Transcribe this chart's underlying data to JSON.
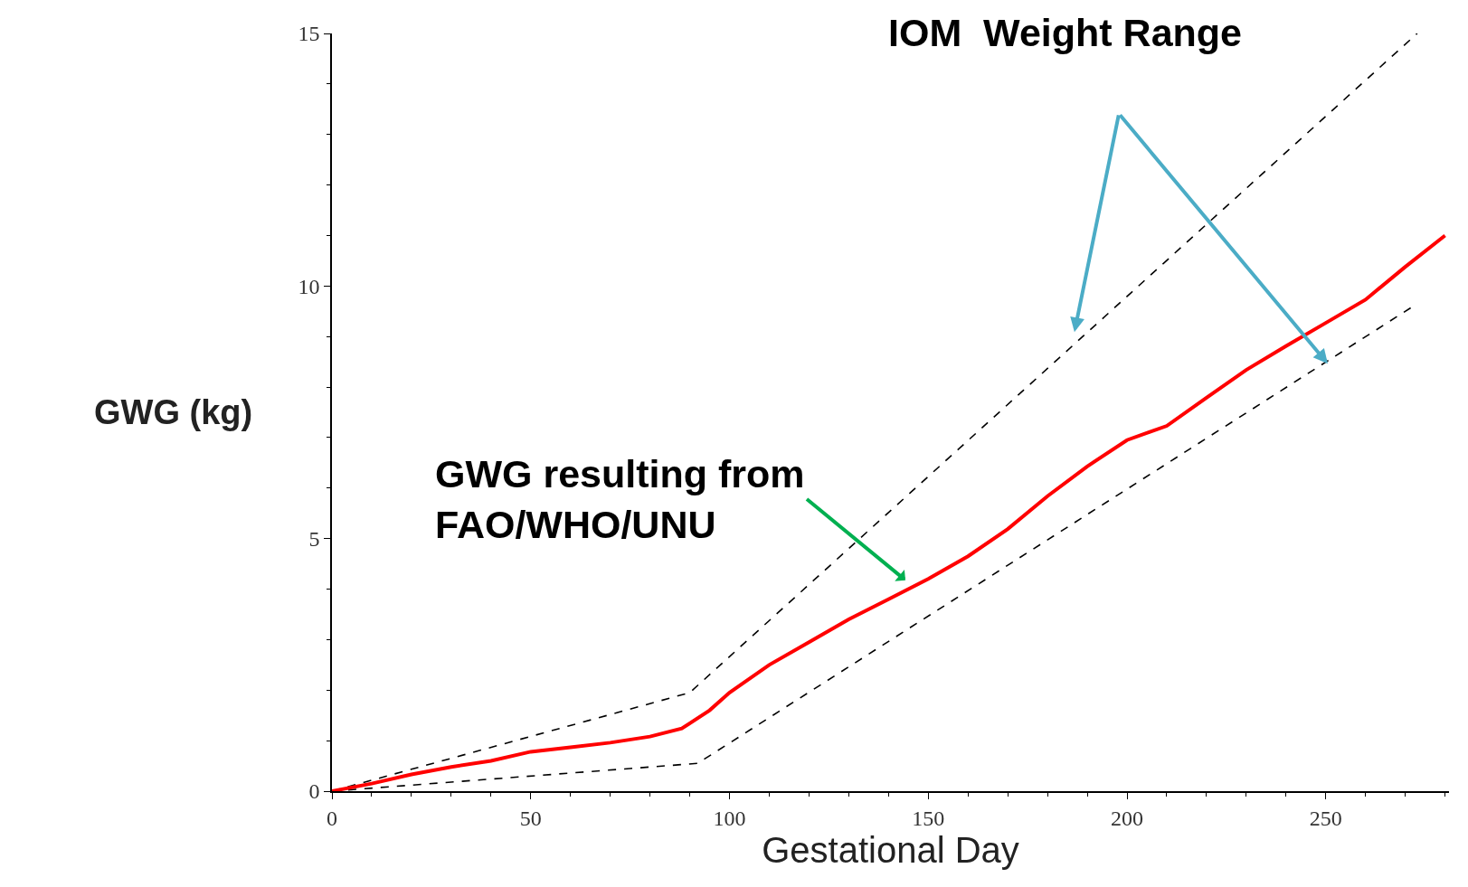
{
  "chart_data": {
    "type": "line",
    "xlabel": "Gestational Day",
    "ylabel": "GWG (kg)",
    "xlim": [
      0,
      281
    ],
    "ylim": [
      0,
      15
    ],
    "xticks": [
      0,
      50,
      100,
      150,
      200,
      250
    ],
    "yticks": [
      0,
      5,
      10,
      15
    ],
    "marker": "none",
    "series": [
      {
        "color": "#000000",
        "line_style": "dashed",
        "x": [
          0,
          90,
          273
        ],
        "values": [
          0,
          1.95,
          15
        ]
      },
      {
        "color": "#000000",
        "line_style": "dashed",
        "x": [
          0,
          92,
          272
        ],
        "values": [
          0,
          0.55,
          9.6
        ]
      },
      {
        "color": "#ff0000",
        "line_style": "solid",
        "x": [
          0,
          10,
          20,
          30,
          40,
          50,
          60,
          70,
          80,
          88,
          95,
          100,
          110,
          120,
          130,
          140,
          150,
          160,
          170,
          180,
          190,
          200,
          210,
          220,
          230,
          240,
          250,
          260,
          270,
          280
        ],
        "values": [
          0,
          0.15,
          0.33,
          0.48,
          0.6,
          0.78,
          0.87,
          0.96,
          1.08,
          1.24,
          1.6,
          1.95,
          2.5,
          2.95,
          3.4,
          3.8,
          4.2,
          4.65,
          5.19,
          5.84,
          6.43,
          6.95,
          7.23,
          7.79,
          8.34,
          8.81,
          9.27,
          9.73,
          10.38,
          11.0
        ]
      }
    ],
    "annotations": [
      "IOM  Weight Range",
      "GWG resulting from\nFAO/WHO/UNU"
    ]
  }
}
